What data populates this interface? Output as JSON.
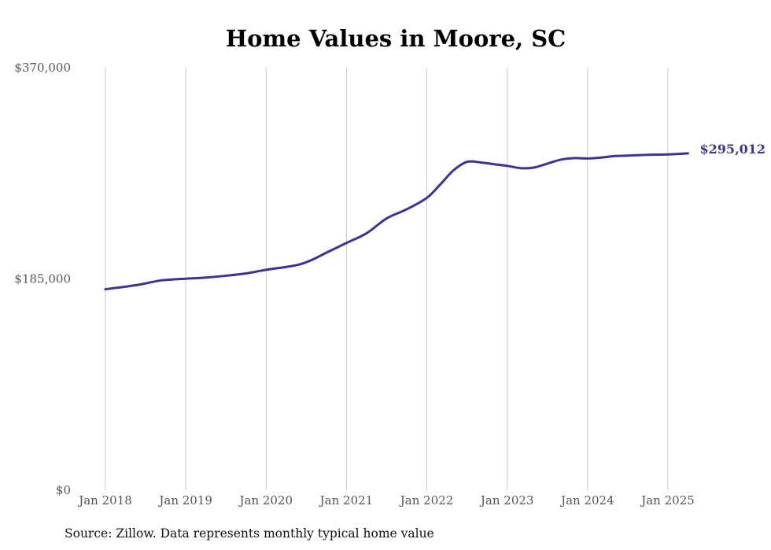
{
  "chart_data": {
    "type": "line",
    "title": "Home Values in Moore, SC",
    "xlabel": "",
    "ylabel": "",
    "ylim": [
      0,
      370000
    ],
    "yticks": [
      {
        "value": 0,
        "label": "$0"
      },
      {
        "value": 185000,
        "label": "$185,000"
      },
      {
        "value": 370000,
        "label": "$370,000"
      }
    ],
    "xticks": [
      {
        "value": 2018.0,
        "label": "Jan 2018"
      },
      {
        "value": 2019.0,
        "label": "Jan 2019"
      },
      {
        "value": 2020.0,
        "label": "Jan 2020"
      },
      {
        "value": 2021.0,
        "label": "Jan 2021"
      },
      {
        "value": 2022.0,
        "label": "Jan 2022"
      },
      {
        "value": 2023.0,
        "label": "Jan 2023"
      },
      {
        "value": 2024.0,
        "label": "Jan 2024"
      },
      {
        "value": 2025.0,
        "label": "Jan 2025"
      }
    ],
    "xlim": [
      2018.0,
      2025.25
    ],
    "grid": "vertical",
    "line_color": "#3d3392",
    "series": [
      {
        "points": [
          [
            2018.0,
            176000
          ],
          [
            2018.17,
            177500
          ],
          [
            2018.42,
            180000
          ],
          [
            2018.67,
            183500
          ],
          [
            2018.83,
            184500
          ],
          [
            2019.0,
            185200
          ],
          [
            2019.25,
            186200
          ],
          [
            2019.5,
            187800
          ],
          [
            2019.75,
            189800
          ],
          [
            2020.0,
            193000
          ],
          [
            2020.25,
            195500
          ],
          [
            2020.42,
            197800
          ],
          [
            2020.58,
            202000
          ],
          [
            2020.75,
            208000
          ],
          [
            2021.0,
            216500
          ],
          [
            2021.25,
            225000
          ],
          [
            2021.5,
            238000
          ],
          [
            2021.75,
            246000
          ],
          [
            2022.0,
            256000
          ],
          [
            2022.17,
            268000
          ],
          [
            2022.33,
            280000
          ],
          [
            2022.5,
            287500
          ],
          [
            2022.67,
            287000
          ],
          [
            2022.83,
            285500
          ],
          [
            2023.0,
            284000
          ],
          [
            2023.17,
            282000
          ],
          [
            2023.33,
            282500
          ],
          [
            2023.5,
            286000
          ],
          [
            2023.67,
            289500
          ],
          [
            2023.83,
            290800
          ],
          [
            2024.0,
            290500
          ],
          [
            2024.17,
            291300
          ],
          [
            2024.33,
            292600
          ],
          [
            2024.5,
            293000
          ],
          [
            2024.75,
            293700
          ],
          [
            2025.0,
            294000
          ],
          [
            2025.25,
            295012
          ]
        ]
      }
    ],
    "end_label": "$295,012"
  },
  "footer": {
    "source": "Source: Zillow. Data represents monthly typical home value"
  }
}
